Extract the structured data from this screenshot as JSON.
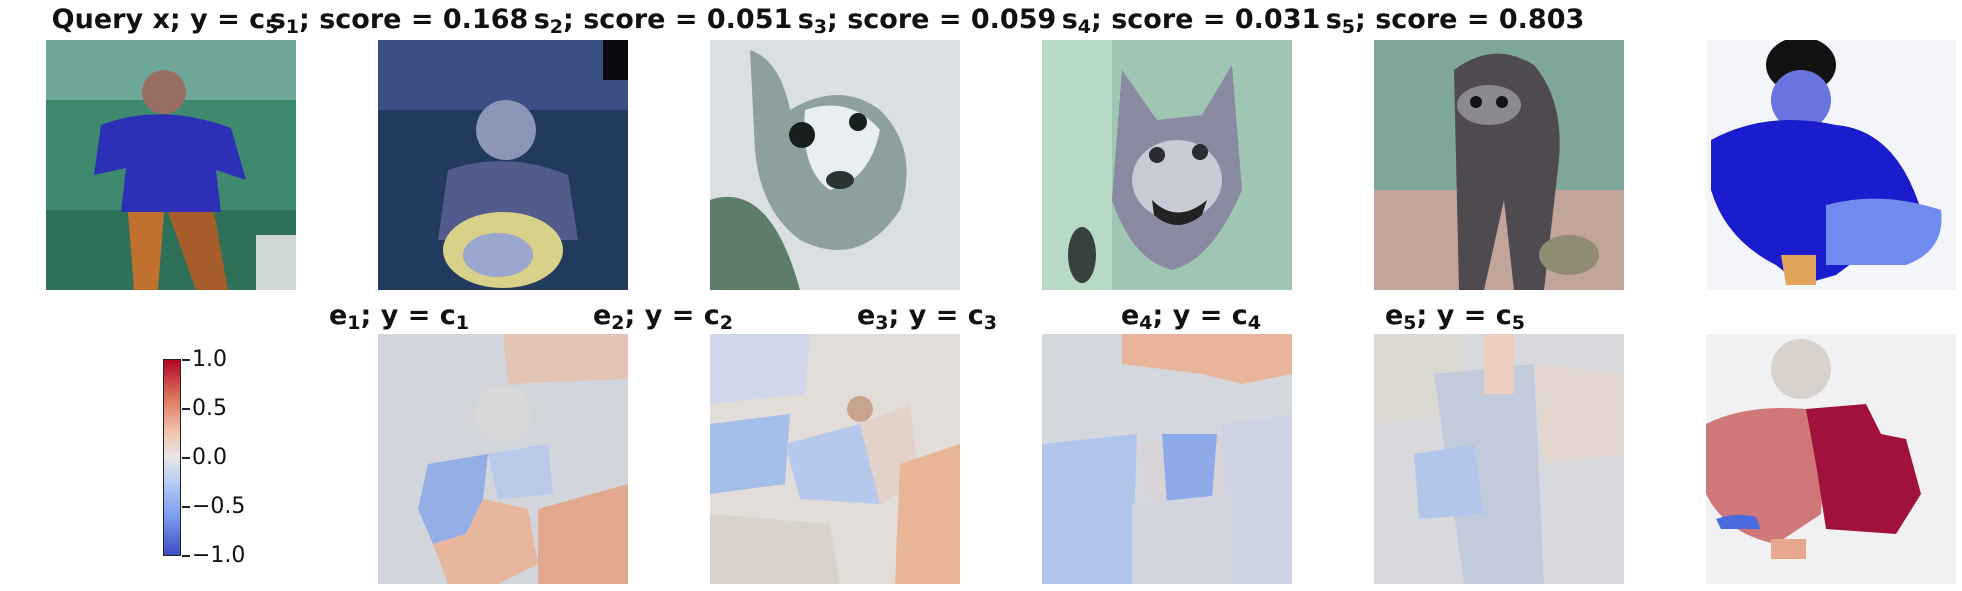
{
  "top_row": [
    {
      "label": "Query x; y = c",
      "sub": "5",
      "score": null
    },
    {
      "label": "s",
      "sub": "1",
      "score": "; score = 0.168"
    },
    {
      "label": "s",
      "sub": "2",
      "score": "; score = 0.051"
    },
    {
      "label": "s",
      "sub": "3",
      "score": "; score = 0.059"
    },
    {
      "label": "s",
      "sub": "4",
      "score": "; score = 0.031"
    },
    {
      "label": "s",
      "sub": "5",
      "score": "; score = 0.803"
    }
  ],
  "bottom_row": [
    {
      "e": "e",
      "esub": "1",
      "mid": "; y = c",
      "csub": "1"
    },
    {
      "e": "e",
      "esub": "2",
      "mid": "; y = c",
      "csub": "2"
    },
    {
      "e": "e",
      "esub": "3",
      "mid": "; y = c",
      "csub": "3"
    },
    {
      "e": "e",
      "esub": "4",
      "mid": "; y = c",
      "csub": "4"
    },
    {
      "e": "e",
      "esub": "5",
      "mid": "; y = c",
      "csub": "5"
    }
  ],
  "colorbar": {
    "colormap": "coolwarm",
    "ticks": [
      "1.0",
      "0.5",
      "0.0",
      "−0.5",
      "−1.0"
    ],
    "colors": {
      "high": "#b40426",
      "mid": "#e6e6e6",
      "low": "#3b4cc0"
    }
  }
}
